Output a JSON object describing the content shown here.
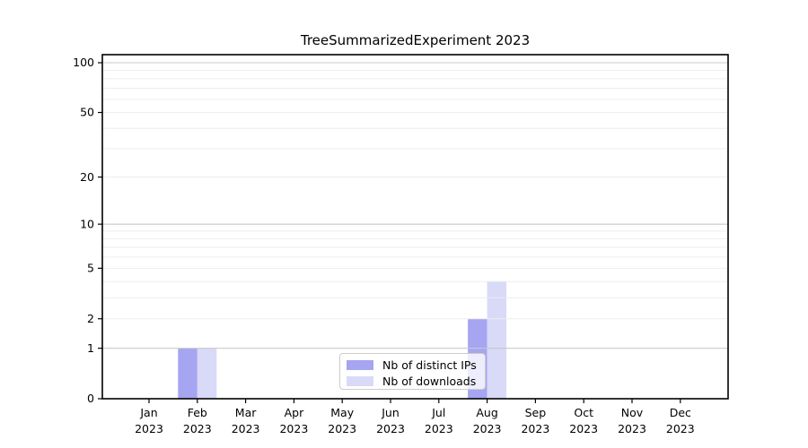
{
  "figure": {
    "title": "TreeSummarizedExperiment 2023"
  },
  "chart_data": {
    "type": "bar",
    "title": "TreeSummarizedExperiment 2023",
    "categories": [
      "Jan",
      "Feb",
      "Mar",
      "Apr",
      "May",
      "Jun",
      "Jul",
      "Aug",
      "Sep",
      "Oct",
      "Nov",
      "Dec"
    ],
    "x_tick_second_line": "2023",
    "series": [
      {
        "name": "Nb of distinct IPs",
        "color": "#a5a5f2",
        "values": [
          0,
          1,
          0,
          0,
          0,
          0,
          0,
          2,
          0,
          0,
          0,
          0
        ]
      },
      {
        "name": "Nb of downloads",
        "color": "#d9d9f8",
        "values": [
          0,
          1,
          0,
          0,
          0,
          0,
          0,
          4,
          0,
          0,
          0,
          0
        ]
      }
    ],
    "y_axis": {
      "scale": "log1p",
      "tick_values": [
        0,
        1,
        2,
        5,
        10,
        20,
        50,
        100
      ],
      "tick_labels": [
        "0",
        "1",
        "2",
        "5",
        "10",
        "20",
        "50",
        "100"
      ],
      "major_gridlines": [
        1,
        10,
        100
      ],
      "minor_gridlines": [
        2,
        3,
        4,
        5,
        6,
        7,
        8,
        9,
        20,
        30,
        40,
        50,
        60,
        70,
        80,
        90
      ],
      "range": [
        0,
        113
      ]
    },
    "legend": {
      "location": "inside-bottom-center",
      "entries": [
        "Nb of distinct IPs",
        "Nb of downloads"
      ]
    },
    "grid": {
      "enabled": true,
      "major_color": "#c9c9c9",
      "minor_color": "#ededed"
    },
    "spine_color": "#000000",
    "text_color": "#000000"
  },
  "legend": {
    "items": [
      {
        "label": "Nb of distinct IPs"
      },
      {
        "label": "Nb of downloads"
      }
    ]
  }
}
